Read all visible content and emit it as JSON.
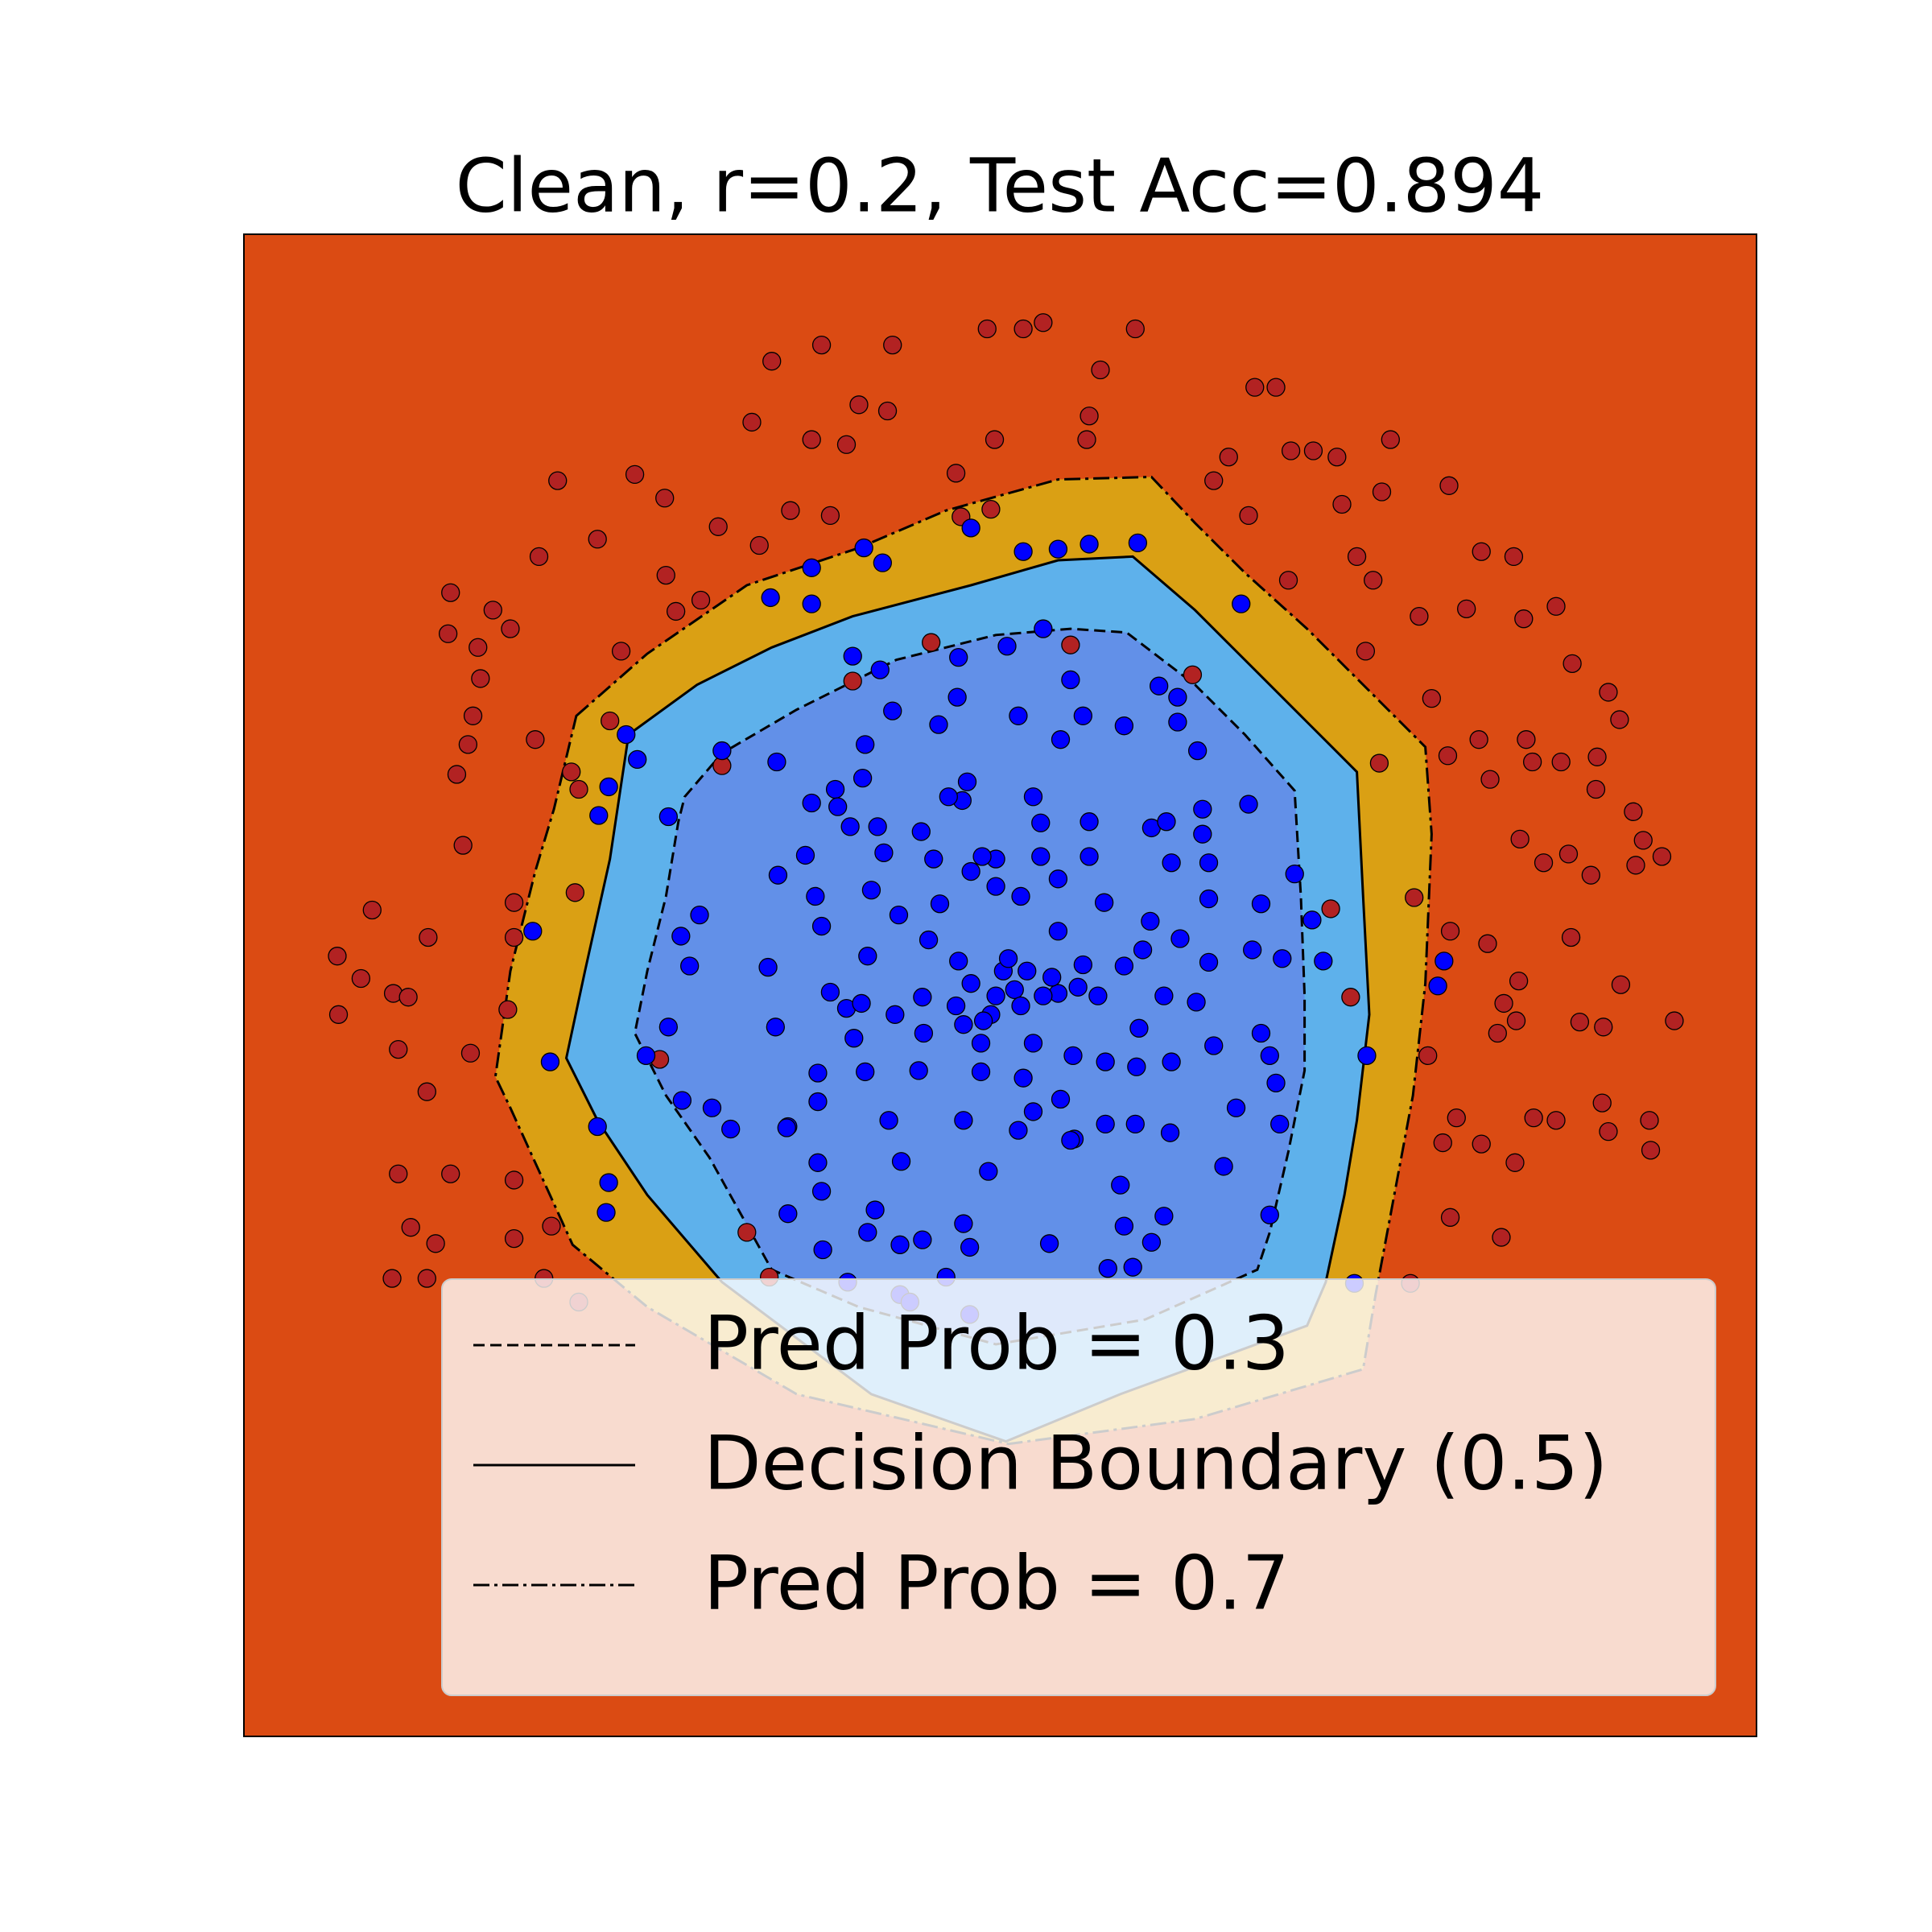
{
  "chart_data": {
    "type": "scatter",
    "title": "Clean, r=0.2, Test Acc=0.894",
    "xlim": [
      0,
      1215
    ],
    "ylim": [
      0,
      1207
    ],
    "background_color": "#DB4B13",
    "legend": "lower right",
    "contours": [
      {
        "name": "Pred Prob = 0.7",
        "linestyle": "dashdot",
        "color": "#000000",
        "fill_color": "#DAA014",
        "x": [
          267,
          324,
          404,
          494,
          564,
          654,
          729,
          764,
          804,
          854,
          894,
          949,
          954,
          949,
          939,
          924,
          909,
          899,
          764,
          614,
          444,
          324,
          264,
          214,
          202,
          214,
          234,
          249
        ],
        "y": [
          820,
          870,
          925,
          955,
          985,
          1010,
          1012,
          975,
          935,
          890,
          850,
          795,
          725,
          605,
          515,
          435,
          355,
          295,
          255,
          235,
          275,
          345,
          395,
          505,
          530,
          615,
          695,
          745
        ]
      },
      {
        "name": "Decision Boundary (0.5)",
        "linestyle": "solid",
        "color": "#000000",
        "fill_color": "#5EB1EB",
        "x": [
          309,
          364,
          424,
          489,
          584,
          654,
          714,
          764,
          814,
          854,
          894,
          899,
          904,
          894,
          884,
          869,
          854,
          704,
          612,
          504,
          384,
          324,
          284,
          259,
          274,
          294
        ],
        "y": [
          805,
          845,
          875,
          900,
          925,
          945,
          948,
          905,
          855,
          815,
          775,
          675,
          580,
          495,
          435,
          365,
          330,
          275,
          237,
          275,
          365,
          435,
          495,
          545,
          615,
          705
        ]
      },
      {
        "name": "Pred Prob = 0.3",
        "linestyle": "dashed",
        "color": "#000000",
        "fill_color": "#6290E8",
        "x": [
          354,
          384,
          444,
          524,
          604,
          664,
          709,
          764,
          804,
          844,
          849,
          852,
          852,
          839,
          824,
          814,
          724,
          604,
          494,
          424,
          374,
          339,
          314,
          324,
          339,
          349
        ],
        "y": [
          755,
          790,
          825,
          865,
          885,
          890,
          887,
          845,
          805,
          760,
          675,
          595,
          535,
          470,
          405,
          375,
          335,
          315,
          345,
          375,
          465,
          515,
          565,
          615,
          675,
          735
        ]
      }
    ],
    "series": [
      {
        "color": "#B22222",
        "edgecolor": "#000000",
        "x": [
          424,
          464,
          521,
          597,
          626,
          642,
          716,
          688,
          812,
          829,
          494,
          517,
          679,
          408,
          456,
          484,
          603,
          677,
          841,
          859,
          878,
          921,
          791,
          779,
          252,
          314,
          338,
          284,
          237,
          381,
          414,
          439,
          471,
          807,
          882,
          914,
          968,
          894,
          994,
          1020,
          907,
          839,
          166,
          164,
          200,
          214,
          188,
          190,
          339,
          347,
          367,
          303,
          184,
          180,
          171,
          234,
          294,
          263,
          269,
          176,
          103,
          148,
          75,
          94,
          120,
          132,
          76,
          124,
          212,
          217,
          217,
          266,
          182,
          147,
          166,
          124,
          217,
          134,
          154,
          119,
          147,
          217,
          241,
          269,
          247,
          944,
          954,
          982,
          1028,
          1054,
          1067,
          1096,
          1105,
          967,
          992,
          1001,
          1030,
          1035,
          1058,
          1087,
          1086,
          1116,
          1124,
          1139,
          1025,
          1044,
          1064,
          1082,
          1118,
          940,
          969,
          999,
          1066,
          1024,
          1012,
          1106,
          1073,
          1092,
          1149,
          1022,
          1007,
          951,
          974,
          1036,
          1054,
          1091,
          1096,
          1129,
          1130,
          963,
          994,
          1021,
          1010,
          969,
          937,
          889,
          873,
          912,
          762,
          664,
          552,
          489,
          901,
          572,
          576,
          600,
          384,
          404,
          422,
          334
        ],
        "y": [
          1105,
          1118,
          1118,
          1131,
          1131,
          1136,
          1131,
          1098,
          1084,
          1084,
          1070,
          1065,
          1061,
          1056,
          1042,
          1038,
          1042,
          1042,
          1033,
          1033,
          1028,
          1042,
          1028,
          1009,
          1009,
          1014,
          995,
          962,
          948,
          972,
          957,
          985,
          981,
          981,
          990,
          1000,
          1005,
          948,
          952,
          948,
          929,
          929,
          919,
          886,
          905,
          890,
          875,
          850,
          933,
          904,
          913,
          872,
          820,
          797,
          773,
          801,
          816,
          775,
          761,
          716,
          664,
          642,
          627,
          609,
          597,
          594,
          580,
          552,
          584,
          670,
          642,
          678,
          549,
          518,
          452,
          452,
          447,
          409,
          396,
          368,
          368,
          400,
          368,
          349,
          410,
          900,
          834,
          906,
          898,
          908,
          862,
          839,
          817,
          788,
          801,
          769,
          801,
          783,
          783,
          787,
          761,
          743,
          720,
          707,
          721,
          702,
          709,
          692,
          700,
          674,
          647,
          637,
          642,
          607,
          589,
          604,
          574,
          570,
          575,
          575,
          565,
          547,
          497,
          497,
          495,
          509,
          486,
          495,
          471,
          477,
          476,
          461,
          401,
          417,
          364,
          594,
          665,
          782,
          853,
          877,
          879,
          848,
          872,
          1015,
          980,
          986,
          780,
          405,
          369,
          544
        ]
      },
      {
        "color": "#0000FF",
        "edgecolor": "#000000",
        "x": [
          584,
          626,
          654,
          679,
          718,
          513,
          498,
          456,
          423,
          456,
          801,
          307,
          316,
          293,
          285,
          232,
          246,
          284,
          293,
          291,
          892,
          964,
          959,
          902,
          867,
          489,
          511,
          574,
          613,
          642,
          664,
          735,
          750,
          750,
          766,
          807,
          770,
          521,
          558,
          573,
          622,
          674,
          707,
          656,
          499,
          497,
          428,
          384,
          341,
          456,
          475,
          477,
          487,
          509,
          544,
          577,
          581,
          566,
          634,
          640,
          679,
          729,
          741,
          770,
          775,
          745,
          679,
          640,
          604,
          593,
          584,
          554,
          514,
          451,
          429,
          459,
          504,
          559,
          604,
          624,
          654,
          691,
          728,
          775,
          817,
          844,
          858,
          834,
          810,
          775,
          752,
          722,
          707,
          674,
          654,
          610,
          574,
          550,
          526,
          501,
          464,
          421,
          351,
          366,
          358,
          341,
          323,
          352,
          376,
          391,
          437,
          461,
          461,
          484,
          471,
          496,
          490,
          523,
          546,
          545,
          578,
          592,
          600,
          634,
          654,
          670,
          686,
          739,
          719,
          765,
          779,
          817,
          824,
          829,
          832,
          824,
          797,
          744,
          716,
          692,
          667,
          634,
          656,
          692,
          717,
          745,
          666,
          626,
          592,
          542,
          499,
          427,
          436,
          461,
          464,
          518,
          528,
          578,
          598,
          622,
          664,
          704,
          707,
          739,
          729,
          694,
          714,
          647,
          578,
          583,
          545,
          527,
          501,
          507,
          465,
          437,
          485,
          527,
          564,
          583,
          535,
          787,
          572,
          584,
          604,
          619,
          642,
          649,
          614,
          629,
          624,
          594
        ],
        "y": [
          971,
          952,
          954,
          958,
          959,
          943,
          955,
          939,
          915,
          910,
          910,
          805,
          785,
          763,
          740,
          647,
          542,
          490,
          445,
          421,
          364,
          623,
          603,
          547,
          623,
          868,
          857,
          867,
          876,
          890,
          849,
          844,
          835,
          815,
          792,
          749,
          745,
          824,
          813,
          835,
          820,
          820,
          812,
          801,
          797,
          770,
          783,
          792,
          739,
          750,
          761,
          747,
          731,
          731,
          727,
          752,
          767,
          755,
          755,
          734,
          735,
          730,
          735,
          725,
          702,
          702,
          707,
          707,
          705,
          707,
          695,
          705,
          710,
          708,
          692,
          675,
          680,
          669,
          683,
          675,
          689,
          670,
          655,
          673,
          669,
          693,
          656,
          625,
          632,
          622,
          641,
          632,
          619,
          620,
          647,
          615,
          623,
          640,
          660,
          627,
          651,
          618,
          643,
          660,
          619,
          570,
          547,
          511,
          505,
          488,
          490,
          510,
          533,
          585,
          598,
          589,
          561,
          580,
          565,
          594,
          572,
          557,
          580,
          557,
          597,
          602,
          595,
          595,
          569,
          590,
          555,
          565,
          547,
          525,
          492,
          419,
          505,
          485,
          492,
          492,
          480,
          502,
          512,
          542,
          538,
          542,
          547,
          529,
          534,
          535,
          534,
          570,
          489,
          461,
          438,
          495,
          462,
          495,
          454,
          487,
          479,
          443,
          410,
          418,
          397,
          376,
          377,
          396,
          412,
          393,
          399,
          395,
          405,
          423,
          391,
          420,
          365,
          355,
          369,
          339,
          349,
          458,
          587,
          605,
          595,
          600,
          595,
          610,
          625,
          615,
          587,
          575
        ]
      }
    ]
  }
}
